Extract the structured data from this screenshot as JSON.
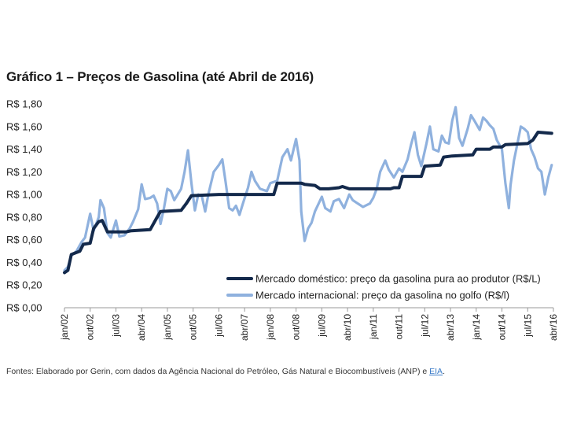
{
  "chart_data": {
    "type": "line",
    "title": "Gráfico 1 – Preços de Gasolina (até Abril de 2016)",
    "ylim": [
      0,
      1.8
    ],
    "yticks": [
      "R$ 0,00",
      "R$ 0,20",
      "R$ 0,40",
      "R$ 0,60",
      "R$ 0,80",
      "R$ 1,00",
      "R$ 1,20",
      "R$ 1,40",
      "R$ 1,60",
      "R$ 1,80"
    ],
    "ytick_values": [
      0,
      0.2,
      0.4,
      0.6,
      0.8,
      1.0,
      1.2,
      1.4,
      1.6,
      1.8
    ],
    "xlim": [
      2002.0,
      2016.25
    ],
    "xticks": [
      "jan/02",
      "out/02",
      "jul/03",
      "abr/04",
      "jan/05",
      "out/05",
      "jul/06",
      "abr/07",
      "jan/08",
      "out/08",
      "jul/09",
      "abr/10",
      "jan/11",
      "out/11",
      "jul/12",
      "abr/13",
      "jan/14",
      "out/14",
      "jul/15",
      "abr/16"
    ],
    "xtick_values": [
      2002.0,
      2002.75,
      2003.5,
      2004.25,
      2005.0,
      2005.75,
      2006.5,
      2007.25,
      2008.0,
      2008.75,
      2009.5,
      2010.25,
      2011.0,
      2011.75,
      2012.5,
      2013.25,
      2014.0,
      2014.75,
      2015.5,
      2016.25
    ],
    "legend": "bottom-right",
    "series": [
      {
        "name": "Mercado doméstico: preço da gasolina pura ao produtor (R$/L)",
        "color": "#13294b",
        "points": [
          [
            2002.0,
            0.31
          ],
          [
            2002.1,
            0.33
          ],
          [
            2002.2,
            0.47
          ],
          [
            2002.45,
            0.5
          ],
          [
            2002.55,
            0.56
          ],
          [
            2002.75,
            0.57
          ],
          [
            2002.85,
            0.7
          ],
          [
            2003.0,
            0.76
          ],
          [
            2003.1,
            0.77
          ],
          [
            2003.25,
            0.67
          ],
          [
            2003.8,
            0.67
          ],
          [
            2003.95,
            0.68
          ],
          [
            2004.5,
            0.69
          ],
          [
            2004.7,
            0.8
          ],
          [
            2004.8,
            0.85
          ],
          [
            2005.4,
            0.86
          ],
          [
            2005.55,
            0.92
          ],
          [
            2005.7,
            0.99
          ],
          [
            2006.5,
            1.0
          ],
          [
            2008.1,
            1.0
          ],
          [
            2008.2,
            1.1
          ],
          [
            2008.9,
            1.1
          ],
          [
            2009.0,
            1.09
          ],
          [
            2009.3,
            1.08
          ],
          [
            2009.45,
            1.05
          ],
          [
            2009.7,
            1.05
          ],
          [
            2010.0,
            1.06
          ],
          [
            2010.1,
            1.07
          ],
          [
            2010.3,
            1.05
          ],
          [
            2011.5,
            1.05
          ],
          [
            2011.6,
            1.06
          ],
          [
            2011.75,
            1.06
          ],
          [
            2011.85,
            1.16
          ],
          [
            2012.4,
            1.16
          ],
          [
            2012.5,
            1.25
          ],
          [
            2012.95,
            1.26
          ],
          [
            2013.05,
            1.33
          ],
          [
            2013.3,
            1.34
          ],
          [
            2013.9,
            1.35
          ],
          [
            2014.0,
            1.4
          ],
          [
            2014.4,
            1.4
          ],
          [
            2014.5,
            1.42
          ],
          [
            2014.75,
            1.42
          ],
          [
            2014.85,
            1.44
          ],
          [
            2015.5,
            1.45
          ],
          [
            2015.65,
            1.48
          ],
          [
            2015.8,
            1.55
          ],
          [
            2016.2,
            1.54
          ]
        ]
      },
      {
        "name": "Mercado internacional: preço da gasolina no golfo (R$/l)",
        "color": "#8fb1de",
        "points": [
          [
            2002.0,
            0.33
          ],
          [
            2002.1,
            0.36
          ],
          [
            2002.2,
            0.46
          ],
          [
            2002.35,
            0.5
          ],
          [
            2002.5,
            0.58
          ],
          [
            2002.6,
            0.62
          ],
          [
            2002.75,
            0.83
          ],
          [
            2002.85,
            0.68
          ],
          [
            2003.0,
            0.8
          ],
          [
            2003.05,
            0.95
          ],
          [
            2003.15,
            0.88
          ],
          [
            2003.25,
            0.66
          ],
          [
            2003.35,
            0.62
          ],
          [
            2003.5,
            0.77
          ],
          [
            2003.6,
            0.63
          ],
          [
            2003.75,
            0.64
          ],
          [
            2003.9,
            0.7
          ],
          [
            2004.0,
            0.76
          ],
          [
            2004.15,
            0.87
          ],
          [
            2004.25,
            1.09
          ],
          [
            2004.35,
            0.96
          ],
          [
            2004.5,
            0.97
          ],
          [
            2004.6,
            0.99
          ],
          [
            2004.7,
            0.92
          ],
          [
            2004.8,
            0.74
          ],
          [
            2004.9,
            0.88
          ],
          [
            2005.0,
            1.05
          ],
          [
            2005.1,
            1.03
          ],
          [
            2005.2,
            0.95
          ],
          [
            2005.4,
            1.05
          ],
          [
            2005.5,
            1.2
          ],
          [
            2005.6,
            1.39
          ],
          [
            2005.7,
            1.1
          ],
          [
            2005.8,
            0.86
          ],
          [
            2005.9,
            1.0
          ],
          [
            2006.0,
            0.99
          ],
          [
            2006.1,
            0.85
          ],
          [
            2006.2,
            1.01
          ],
          [
            2006.35,
            1.2
          ],
          [
            2006.5,
            1.26
          ],
          [
            2006.6,
            1.31
          ],
          [
            2006.7,
            1.1
          ],
          [
            2006.8,
            0.88
          ],
          [
            2006.9,
            0.86
          ],
          [
            2007.0,
            0.9
          ],
          [
            2007.1,
            0.82
          ],
          [
            2007.2,
            0.92
          ],
          [
            2007.35,
            1.06
          ],
          [
            2007.45,
            1.2
          ],
          [
            2007.55,
            1.12
          ],
          [
            2007.7,
            1.05
          ],
          [
            2007.9,
            1.03
          ],
          [
            2008.0,
            1.1
          ],
          [
            2008.2,
            1.12
          ],
          [
            2008.35,
            1.33
          ],
          [
            2008.5,
            1.4
          ],
          [
            2008.6,
            1.3
          ],
          [
            2008.75,
            1.49
          ],
          [
            2008.85,
            1.3
          ],
          [
            2008.9,
            0.85
          ],
          [
            2009.0,
            0.59
          ],
          [
            2009.1,
            0.7
          ],
          [
            2009.2,
            0.75
          ],
          [
            2009.3,
            0.85
          ],
          [
            2009.5,
            0.98
          ],
          [
            2009.6,
            0.88
          ],
          [
            2009.75,
            0.85
          ],
          [
            2009.85,
            0.94
          ],
          [
            2010.0,
            0.96
          ],
          [
            2010.15,
            0.88
          ],
          [
            2010.3,
            1.0
          ],
          [
            2010.4,
            0.95
          ],
          [
            2010.5,
            0.93
          ],
          [
            2010.7,
            0.89
          ],
          [
            2010.9,
            0.92
          ],
          [
            2011.0,
            0.97
          ],
          [
            2011.1,
            1.05
          ],
          [
            2011.2,
            1.2
          ],
          [
            2011.35,
            1.3
          ],
          [
            2011.45,
            1.22
          ],
          [
            2011.6,
            1.15
          ],
          [
            2011.75,
            1.23
          ],
          [
            2011.85,
            1.2
          ],
          [
            2012.0,
            1.31
          ],
          [
            2012.1,
            1.44
          ],
          [
            2012.2,
            1.55
          ],
          [
            2012.3,
            1.35
          ],
          [
            2012.4,
            1.25
          ],
          [
            2012.55,
            1.45
          ],
          [
            2012.65,
            1.6
          ],
          [
            2012.75,
            1.4
          ],
          [
            2012.9,
            1.38
          ],
          [
            2013.0,
            1.52
          ],
          [
            2013.1,
            1.46
          ],
          [
            2013.2,
            1.45
          ],
          [
            2013.3,
            1.65
          ],
          [
            2013.4,
            1.77
          ],
          [
            2013.5,
            1.5
          ],
          [
            2013.6,
            1.43
          ],
          [
            2013.75,
            1.58
          ],
          [
            2013.85,
            1.7
          ],
          [
            2013.95,
            1.65
          ],
          [
            2014.1,
            1.57
          ],
          [
            2014.2,
            1.68
          ],
          [
            2014.3,
            1.65
          ],
          [
            2014.4,
            1.61
          ],
          [
            2014.5,
            1.58
          ],
          [
            2014.6,
            1.48
          ],
          [
            2014.75,
            1.4
          ],
          [
            2014.85,
            1.1
          ],
          [
            2014.95,
            0.88
          ],
          [
            2015.0,
            1.08
          ],
          [
            2015.1,
            1.3
          ],
          [
            2015.2,
            1.45
          ],
          [
            2015.3,
            1.6
          ],
          [
            2015.4,
            1.58
          ],
          [
            2015.5,
            1.55
          ],
          [
            2015.6,
            1.4
          ],
          [
            2015.7,
            1.33
          ],
          [
            2015.8,
            1.23
          ],
          [
            2015.9,
            1.2
          ],
          [
            2016.0,
            1.0
          ],
          [
            2016.1,
            1.15
          ],
          [
            2016.2,
            1.26
          ]
        ]
      }
    ]
  },
  "source": {
    "text": "Fontes: Elaborado por Gerin, com dados da Agência Nacional do Petróleo, Gás Natural e Biocombustíveis (ANP) e ",
    "link": "EIA",
    "tail": "."
  }
}
